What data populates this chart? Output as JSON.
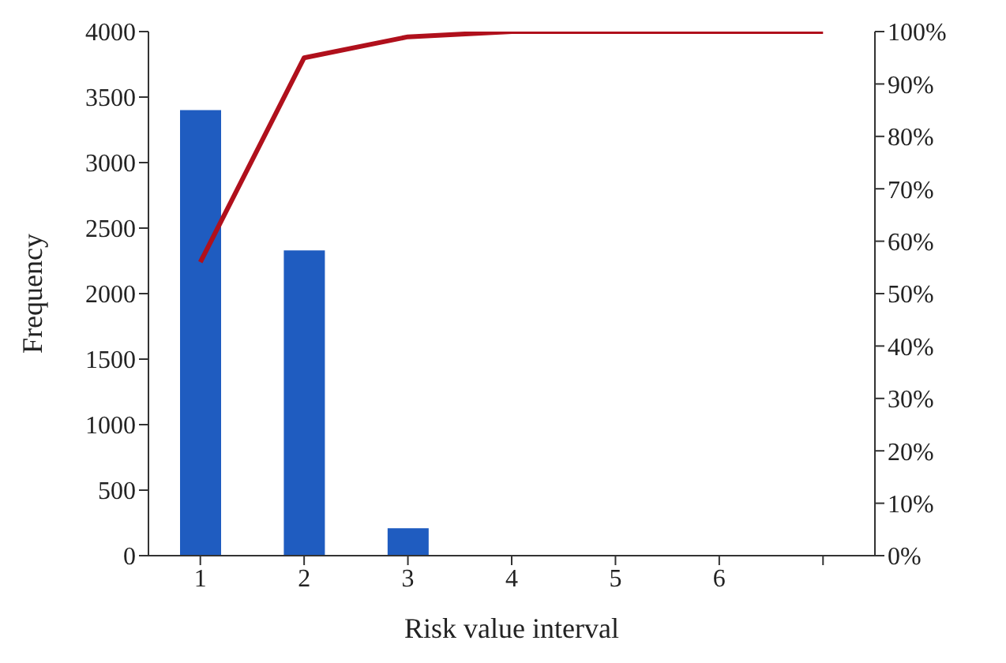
{
  "chart_data": {
    "type": "bar",
    "xlabel": "Risk value interval",
    "ylabel": "Frequency",
    "categories": [
      "1",
      "2",
      "3",
      "4",
      "5",
      "6",
      null
    ],
    "series": [
      {
        "color": "#1f5cc0",
        "values": [
          3400,
          2330,
          210,
          0,
          0,
          0,
          null
        ]
      },
      {
        "type": "line",
        "axis": "y2",
        "color": "#b0101c",
        "values": [
          56,
          95,
          99,
          100,
          100,
          100,
          100
        ]
      }
    ],
    "ylim": [
      0,
      4000
    ],
    "yticks": [
      0,
      500,
      1000,
      1500,
      2000,
      2500,
      3000,
      3500,
      4000
    ],
    "y2lim": [
      0,
      100
    ],
    "y2ticks": [
      {
        "value": 0,
        "label": "0%"
      },
      {
        "value": 10,
        "label": "10%"
      },
      {
        "value": 20,
        "label": "20%"
      },
      {
        "value": 30,
        "label": "30%"
      },
      {
        "value": 40,
        "label": "40%"
      },
      {
        "value": 50,
        "label": "50%"
      },
      {
        "value": 60,
        "label": "60%"
      },
      {
        "value": 70,
        "label": "70%"
      },
      {
        "value": 80,
        "label": "80%"
      },
      {
        "value": 90,
        "label": "90%"
      },
      {
        "value": 100,
        "label": "100%"
      }
    ],
    "grid": false,
    "legend": false,
    "marker": "none"
  }
}
